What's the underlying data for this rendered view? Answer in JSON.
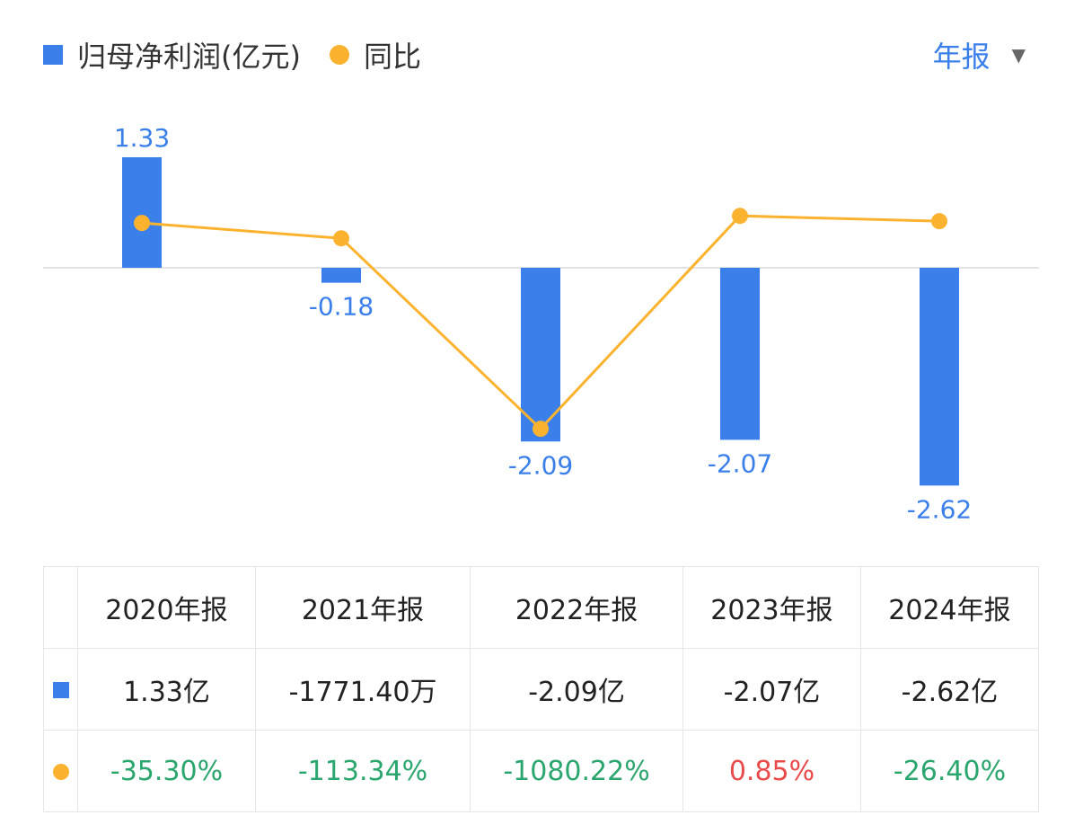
{
  "legend": {
    "bar_label": "归母净利润(亿元)",
    "line_label": "同比"
  },
  "period_selector": {
    "label": "年报"
  },
  "colors": {
    "bar": "#3b80ea",
    "line": "#fbb32f",
    "positive": "#e94b4b",
    "negative": "#2ba66e"
  },
  "chart_data": {
    "type": "bar+line",
    "categories": [
      "2020年报",
      "2021年报",
      "2022年报",
      "2023年报",
      "2024年报"
    ],
    "series": [
      {
        "name": "归母净利润(亿元)",
        "type": "bar",
        "values": [
          1.33,
          -0.18,
          -2.09,
          -2.07,
          -2.62
        ],
        "labels": [
          "1.33",
          "-0.18",
          "-2.09",
          "-2.07",
          "-2.62"
        ]
      },
      {
        "name": "同比",
        "type": "line",
        "values": [
          -35.3,
          -113.34,
          -1080.22,
          0.85,
          -26.4
        ]
      }
    ]
  },
  "table": {
    "headers": [
      "2020年报",
      "2021年报",
      "2022年报",
      "2023年报",
      "2024年报"
    ],
    "profit": [
      "1.33亿",
      "-1771.40万",
      "-2.09亿",
      "-2.07亿",
      "-2.62亿"
    ],
    "yoy": [
      "-35.30%",
      "-113.34%",
      "-1080.22%",
      "0.85%",
      "-26.40%"
    ]
  }
}
